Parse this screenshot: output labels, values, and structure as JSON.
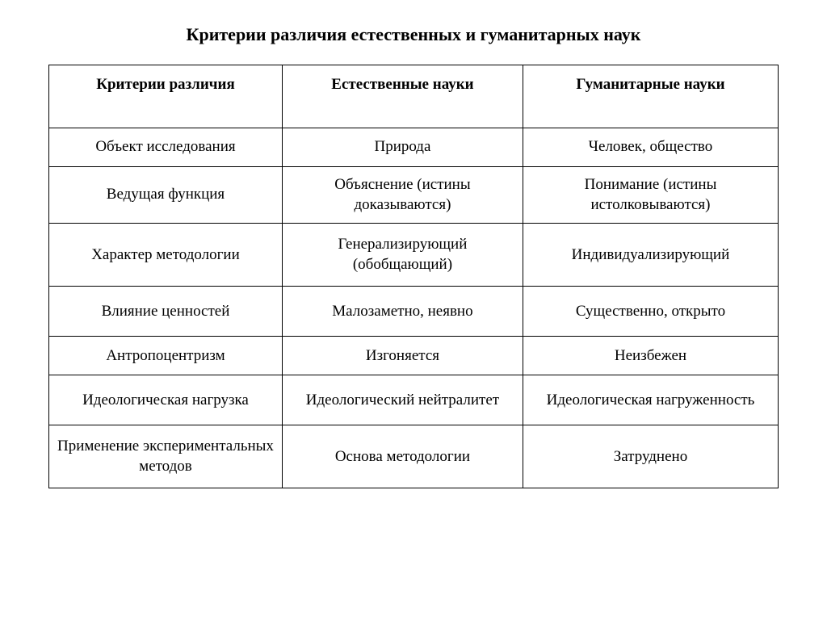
{
  "title": "Критерии различия естественных и гуманитарных наук",
  "table": {
    "columns": [
      "Критерии различия",
      "Естественные науки",
      "Гуманитарные науки"
    ],
    "rows": [
      [
        "Объект исследования",
        "Природа",
        "Человек, общество"
      ],
      [
        "Ведущая функция",
        "Объяснение (истины доказываются)",
        "Понимание (истины истолковываются)"
      ],
      [
        "Характер методологии",
        "Генерализирующий (обобщающий)",
        "Индивидуализирующий"
      ],
      [
        "Влияние ценностей",
        "Малозаметно, неявно",
        "Существенно, открыто"
      ],
      [
        "Антропоцентризм",
        "Изгоняется",
        "Неизбежен"
      ],
      [
        "Идеологическая нагрузка",
        "Идеологический нейтралитет",
        "Идеологическая нагруженность"
      ],
      [
        "Применение экспериментальных методов",
        "Основа методологии",
        "Затруднено"
      ]
    ],
    "row_heights": [
      "row-short",
      "row-med",
      "row-tall",
      "row-med",
      "row-short",
      "row-med",
      "row-tall"
    ],
    "border_color": "#000000",
    "background_color": "#ffffff",
    "text_color": "#000000",
    "title_fontsize": 22,
    "cell_fontsize": 19,
    "font_family": "Times New Roman"
  }
}
